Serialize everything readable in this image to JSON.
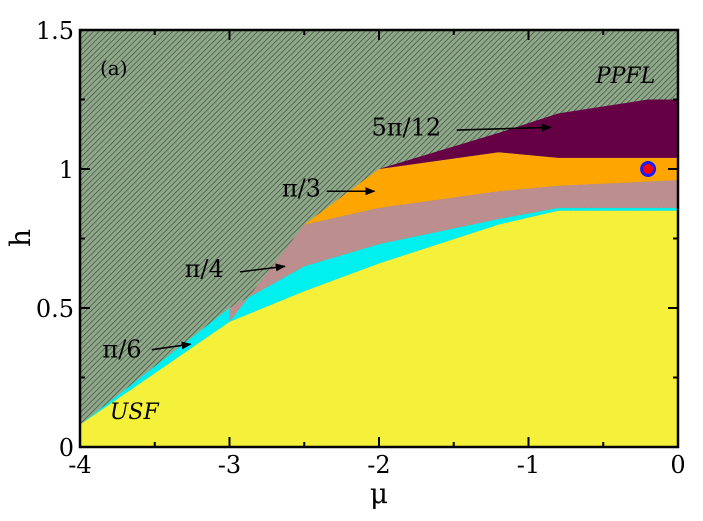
{
  "chart_data": {
    "type": "area",
    "title": "",
    "panel_label": "(a)",
    "xlabel": "μ",
    "ylabel": "h",
    "xlim": [
      -4,
      0
    ],
    "ylim": [
      0,
      1.5
    ],
    "x_ticks": [
      -4,
      -3,
      -2,
      -1,
      0
    ],
    "x_tick_labels": [
      "-4",
      "-3",
      "-2",
      "-1",
      "0"
    ],
    "y_ticks": [
      0,
      0.5,
      1,
      1.5
    ],
    "y_tick_labels": [
      "0",
      "0.5",
      "1",
      "1.5"
    ],
    "grid": false,
    "background_region": {
      "name": "PPFL",
      "label": "PPFL",
      "color": "#8fa88a",
      "hatch_color": "#3d4d3c"
    },
    "regions": [
      {
        "name": "π/6",
        "color": "#00f0f0",
        "polygon": [
          [
            -4,
            0.08
          ],
          [
            -3,
            0.5
          ],
          [
            -2.5,
            0.65
          ],
          [
            -2,
            0.73
          ],
          [
            -1.2,
            0.82
          ],
          [
            -0.8,
            0.86
          ],
          [
            0,
            0.86
          ],
          [
            0,
            0.85
          ],
          [
            -0.8,
            0.85
          ],
          [
            -1.2,
            0.8
          ],
          [
            -2,
            0.66
          ],
          [
            -2.5,
            0.56
          ],
          [
            -3,
            0.45
          ],
          [
            -4,
            0.08
          ]
        ]
      },
      {
        "name": "π/4",
        "color": "#bc8e8e",
        "polygon": [
          [
            -3,
            0.5
          ],
          [
            -3,
            0.45
          ],
          [
            -2.5,
            0.8
          ],
          [
            -2,
            0.86
          ],
          [
            -1.2,
            0.92
          ],
          [
            -0.8,
            0.94
          ],
          [
            0,
            0.96
          ],
          [
            0,
            0.86
          ],
          [
            -0.8,
            0.86
          ],
          [
            -1.2,
            0.82
          ],
          [
            -2,
            0.73
          ],
          [
            -2.5,
            0.65
          ]
        ]
      },
      {
        "name": "π/3",
        "color": "#ffa500",
        "polygon": [
          [
            -2.5,
            0.8
          ],
          [
            -2,
            1.0
          ],
          [
            -1.2,
            1.06
          ],
          [
            -0.8,
            1.04
          ],
          [
            0,
            1.04
          ],
          [
            0,
            0.96
          ],
          [
            -0.8,
            0.94
          ],
          [
            -1.2,
            0.92
          ],
          [
            -2,
            0.86
          ]
        ]
      },
      {
        "name": "5π/12",
        "color": "#660045",
        "polygon": [
          [
            -2,
            1.0
          ],
          [
            -1.2,
            1.06
          ],
          [
            -0.8,
            1.04
          ],
          [
            0,
            1.04
          ],
          [
            0,
            1.25
          ],
          [
            -0.2,
            1.25
          ],
          [
            -0.8,
            1.2
          ],
          [
            -1.2,
            1.13
          ]
        ]
      },
      {
        "name": "USF",
        "color": "#f5f03a",
        "polygon": [
          [
            -4,
            0
          ],
          [
            0,
            0
          ],
          [
            0,
            0.85
          ],
          [
            -0.8,
            0.85
          ],
          [
            -1.2,
            0.8
          ],
          [
            -2,
            0.66
          ],
          [
            -2.5,
            0.56
          ],
          [
            -3,
            0.45
          ],
          [
            -4,
            0.08
          ]
        ]
      }
    ],
    "region_labels": [
      {
        "text": "PPFL",
        "x": -0.55,
        "y": 1.31
      },
      {
        "text": "USF",
        "x": -3.8,
        "y": 0.1
      }
    ],
    "annotations": [
      {
        "text": "5π/12",
        "text_x": -2.05,
        "text_y": 1.15,
        "arrow_to_x": -0.85,
        "arrow_to_y": 1.15,
        "arrow_from_x": -1.48,
        "arrow_from_y": 1.14
      },
      {
        "text": "π/3",
        "text_x": -2.65,
        "text_y": 0.93,
        "arrow_to_x": -2.03,
        "arrow_to_y": 0.92,
        "arrow_from_x": -2.35,
        "arrow_from_y": 0.92
      },
      {
        "text": "π/4",
        "text_x": -3.3,
        "text_y": 0.64,
        "arrow_to_x": -2.63,
        "arrow_to_y": 0.65,
        "arrow_from_x": -2.93,
        "arrow_from_y": 0.63
      },
      {
        "text": "π/6",
        "text_x": -3.85,
        "text_y": 0.35,
        "arrow_to_x": -3.26,
        "arrow_to_y": 0.37,
        "arrow_from_x": -3.52,
        "arrow_from_y": 0.35
      }
    ],
    "marker": {
      "x": -0.2,
      "y": 1.0,
      "fill": "#ff0000",
      "stroke": "#1a1aff"
    }
  }
}
